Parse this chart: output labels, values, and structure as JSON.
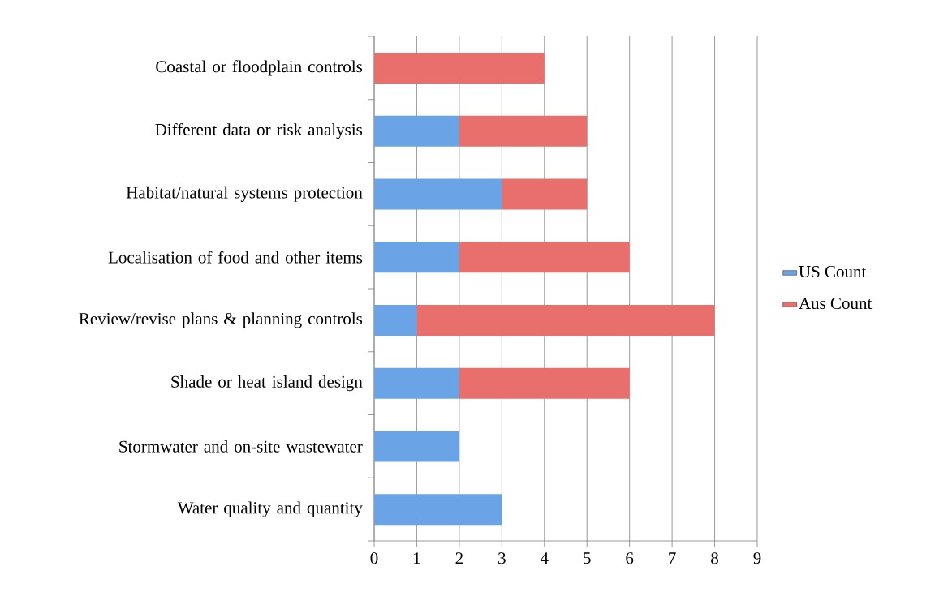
{
  "chart_data": {
    "type": "bar",
    "orientation": "horizontal",
    "stacked": true,
    "categories": [
      "Coastal or floodplain controls",
      "Different data or risk analysis",
      "Habitat/natural systems protection",
      "Localisation of food and other items",
      "Review/revise plans & planning controls",
      "Shade or heat island design",
      "Stormwater and on-site wastewater",
      "Water quality and quantity"
    ],
    "series": [
      {
        "name": "US Count",
        "color": "#6aa3e6",
        "values": [
          0,
          2,
          3,
          2,
          1,
          2,
          2,
          3
        ]
      },
      {
        "name": "Aus Count",
        "color": "#e86f6c",
        "values": [
          4,
          3,
          2,
          4,
          7,
          4,
          0,
          0
        ]
      }
    ],
    "xlim": [
      0,
      9
    ],
    "xticks": [
      0,
      1,
      2,
      3,
      4,
      5,
      6,
      7,
      8,
      9
    ],
    "grid": "x",
    "legend": "right"
  }
}
